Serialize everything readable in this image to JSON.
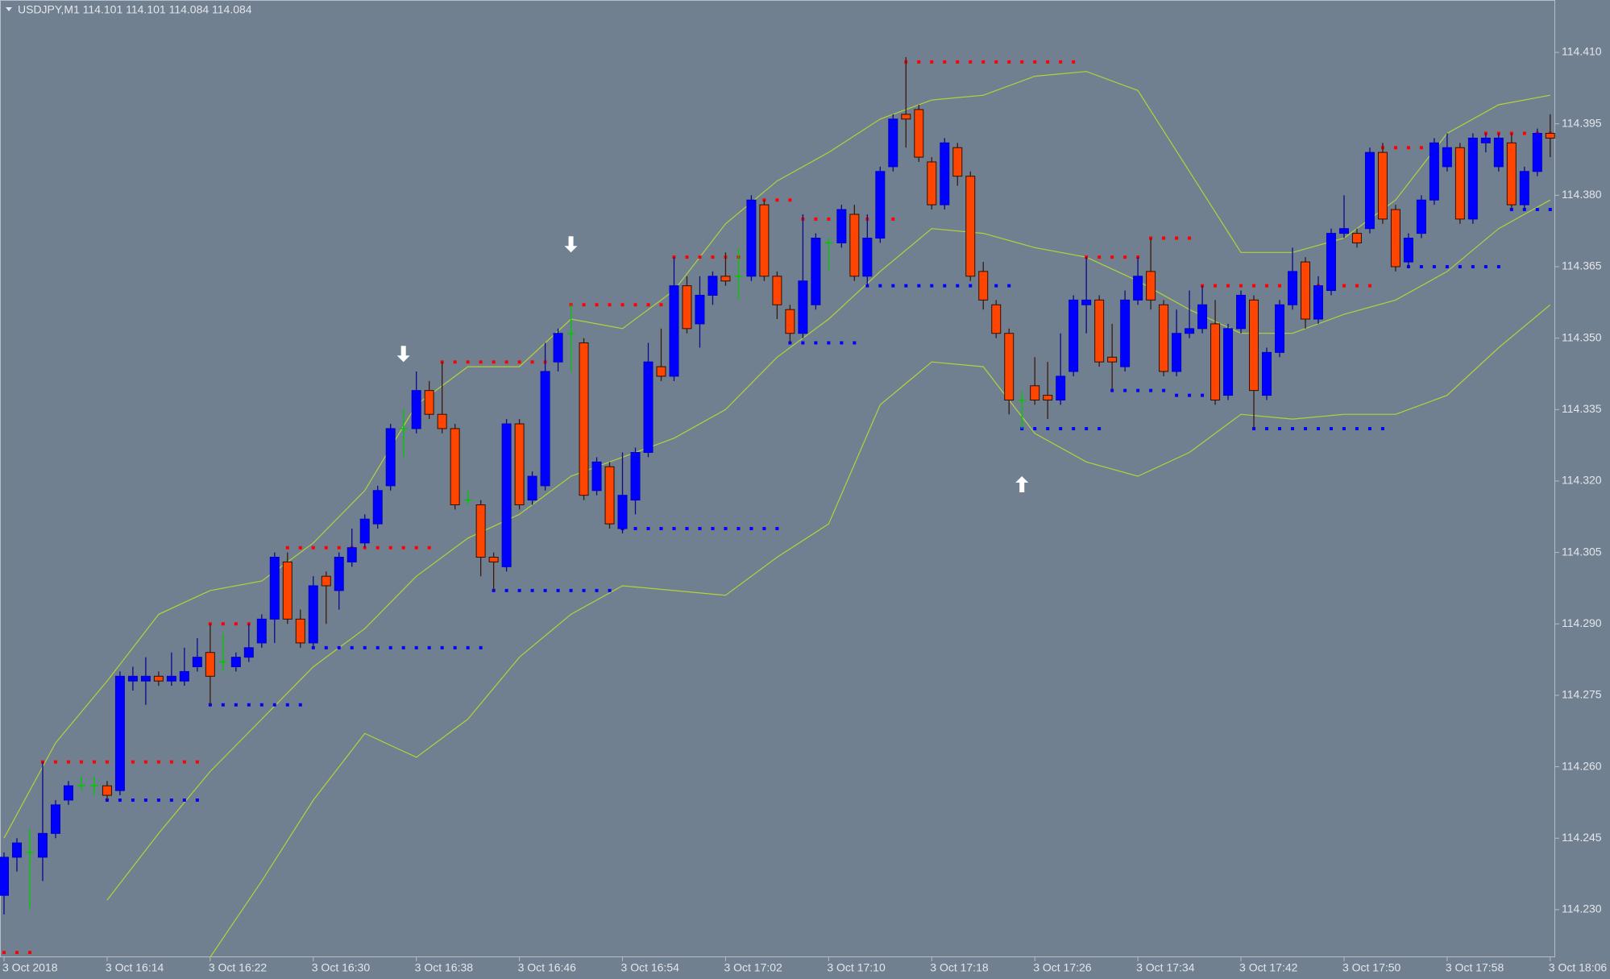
{
  "chart_data": {
    "type": "candlestick",
    "title": "USDJPY,M1  114.101 114.101 114.084 114.084",
    "categories": [
      "3 Oct 2018",
      null,
      null,
      null,
      null,
      null,
      null,
      null,
      "3 Oct 16:14",
      null,
      null,
      null,
      null,
      null,
      null,
      null,
      "3 Oct 16:22",
      null,
      null,
      null,
      null,
      null,
      null,
      null,
      "3 Oct 16:30",
      null,
      null,
      null,
      null,
      null,
      null,
      null,
      "3 Oct 16:38",
      null,
      null,
      null,
      null,
      null,
      null,
      null,
      "3 Oct 16:46",
      null,
      null,
      null,
      null,
      null,
      null,
      null,
      "3 Oct 16:54",
      null,
      null,
      null,
      null,
      null,
      null,
      null,
      "3 Oct 17:02",
      null,
      null,
      null,
      null,
      null,
      null,
      null,
      "3 Oct 17:10",
      null,
      null,
      null,
      null,
      null,
      null,
      null,
      "3 Oct 17:18",
      null,
      null,
      null,
      null,
      null,
      null,
      null,
      "3 Oct 17:26",
      null,
      null,
      null,
      null,
      null,
      null,
      null,
      "3 Oct 17:34",
      null,
      null,
      null,
      null,
      null,
      null,
      null,
      "3 Oct 17:42",
      null,
      null,
      null,
      null,
      null,
      null,
      null,
      "3 Oct 17:50",
      null,
      null,
      null,
      null,
      null,
      null,
      null,
      "3 Oct 17:58",
      null,
      null,
      null,
      null,
      null,
      null,
      null,
      "3 Oct 18:06"
    ],
    "candles": {
      "open": [
        114.233,
        114.241,
        114.242,
        114.241,
        114.246,
        114.253,
        114.256,
        114.256,
        114.256,
        114.255,
        114.278,
        114.278,
        114.279,
        114.278,
        114.278,
        114.281,
        114.284,
        114.282,
        114.281,
        114.283,
        114.286,
        114.291,
        114.303,
        114.291,
        114.286,
        114.3,
        114.297,
        114.303,
        114.307,
        114.311,
        114.319,
        114.331,
        114.331,
        114.339,
        114.334,
        114.331,
        114.316,
        114.315,
        114.304,
        114.302,
        114.332,
        114.316,
        114.319,
        114.345,
        114.351,
        114.349,
        114.318,
        114.323,
        114.31,
        114.316,
        114.326,
        114.344,
        114.342,
        114.361,
        114.353,
        114.359,
        114.363,
        114.363,
        114.363,
        114.378,
        114.363,
        114.356,
        114.351,
        114.357,
        114.37,
        114.37,
        114.376,
        114.363,
        114.371,
        114.386,
        114.397,
        114.398,
        114.387,
        114.378,
        114.39,
        114.384,
        114.364,
        114.357,
        114.351,
        114.337,
        114.34,
        114.338,
        114.337,
        114.343,
        114.357,
        114.358,
        114.346,
        114.344,
        114.358,
        114.364,
        114.357,
        114.343,
        114.351,
        114.352,
        114.353,
        114.338,
        114.352,
        114.358,
        114.338,
        114.347,
        114.357,
        114.366,
        114.354,
        114.36,
        114.372,
        114.372,
        114.373,
        114.389,
        114.377,
        114.366,
        114.372,
        114.379,
        114.386,
        114.39,
        114.375,
        114.391,
        114.386,
        114.391,
        114.378,
        114.385,
        114.393
      ],
      "high": [
        114.242,
        114.245,
        114.247,
        114.261,
        114.253,
        114.257,
        114.258,
        114.258,
        114.257,
        114.28,
        114.281,
        114.283,
        114.28,
        114.284,
        114.285,
        114.287,
        114.29,
        114.288,
        114.284,
        114.29,
        114.292,
        114.305,
        114.305,
        114.293,
        114.3,
        114.301,
        114.305,
        114.31,
        114.313,
        114.319,
        114.332,
        114.335,
        114.343,
        114.341,
        114.345,
        114.332,
        114.318,
        114.316,
        114.305,
        114.333,
        114.333,
        114.322,
        114.349,
        114.352,
        114.357,
        114.35,
        114.325,
        114.324,
        114.326,
        114.327,
        114.349,
        114.352,
        114.367,
        114.363,
        114.363,
        114.364,
        114.368,
        114.369,
        114.38,
        114.379,
        114.364,
        114.357,
        114.376,
        114.372,
        114.371,
        114.378,
        114.378,
        114.376,
        114.386,
        114.397,
        114.409,
        114.399,
        114.388,
        114.392,
        114.391,
        114.385,
        114.366,
        114.358,
        114.352,
        114.339,
        114.346,
        114.345,
        114.351,
        114.359,
        114.367,
        114.359,
        114.353,
        114.36,
        114.367,
        114.371,
        114.358,
        114.356,
        114.36,
        114.361,
        114.358,
        114.353,
        114.36,
        114.359,
        114.348,
        114.358,
        114.369,
        114.367,
        114.363,
        114.373,
        114.38,
        114.373,
        114.39,
        114.391,
        114.378,
        114.372,
        114.38,
        114.392,
        114.393,
        114.391,
        114.393,
        114.393,
        114.393,
        114.393,
        114.386,
        114.394,
        114.397
      ],
      "low": [
        114.229,
        114.238,
        114.23,
        114.236,
        114.245,
        114.252,
        114.255,
        114.254,
        114.253,
        114.254,
        114.276,
        114.273,
        114.277,
        114.277,
        114.277,
        114.28,
        114.273,
        114.28,
        114.28,
        114.282,
        114.285,
        114.286,
        114.29,
        114.285,
        114.285,
        114.29,
        114.293,
        114.302,
        114.306,
        114.31,
        114.318,
        114.325,
        114.33,
        114.333,
        114.33,
        114.314,
        114.315,
        114.3,
        114.297,
        114.301,
        114.314,
        114.315,
        114.318,
        114.343,
        114.343,
        114.316,
        114.317,
        114.31,
        114.309,
        114.313,
        114.325,
        114.341,
        114.341,
        114.351,
        114.348,
        114.357,
        114.361,
        114.358,
        114.362,
        114.362,
        114.354,
        114.349,
        114.35,
        114.356,
        114.364,
        114.369,
        114.362,
        114.361,
        114.37,
        114.385,
        114.39,
        114.387,
        114.377,
        114.377,
        114.382,
        114.362,
        114.356,
        114.35,
        114.334,
        114.331,
        114.336,
        114.333,
        114.336,
        114.342,
        114.351,
        114.344,
        114.339,
        114.343,
        114.357,
        114.356,
        114.342,
        114.342,
        114.35,
        114.351,
        114.336,
        114.337,
        114.351,
        114.331,
        114.337,
        114.346,
        114.356,
        114.352,
        114.353,
        114.359,
        114.371,
        114.369,
        114.372,
        114.374,
        114.364,
        114.365,
        114.371,
        114.378,
        114.385,
        114.374,
        114.374,
        114.389,
        114.385,
        114.377,
        114.377,
        114.384,
        114.388
      ],
      "close": [
        114.241,
        114.244,
        114.242,
        114.246,
        114.252,
        114.256,
        114.256,
        114.256,
        114.254,
        114.279,
        114.279,
        114.279,
        114.278,
        114.279,
        114.28,
        114.283,
        114.279,
        114.282,
        114.283,
        114.285,
        114.291,
        114.304,
        114.291,
        114.286,
        114.298,
        114.298,
        114.304,
        114.306,
        114.312,
        114.318,
        114.331,
        114.331,
        114.339,
        114.334,
        114.331,
        114.315,
        114.316,
        114.304,
        114.303,
        114.332,
        114.315,
        114.321,
        114.343,
        114.351,
        114.351,
        114.317,
        114.324,
        114.311,
        114.317,
        114.326,
        114.345,
        114.342,
        114.361,
        114.352,
        114.359,
        114.363,
        114.362,
        114.363,
        114.379,
        114.363,
        114.357,
        114.351,
        114.362,
        114.371,
        114.37,
        114.377,
        114.363,
        114.371,
        114.385,
        114.396,
        114.396,
        114.388,
        114.378,
        114.391,
        114.384,
        114.363,
        114.358,
        114.351,
        114.337,
        114.337,
        114.337,
        114.337,
        114.342,
        114.358,
        114.358,
        114.345,
        114.345,
        114.358,
        114.363,
        114.358,
        114.343,
        114.351,
        114.352,
        114.357,
        114.337,
        114.352,
        114.359,
        114.339,
        114.347,
        114.357,
        114.364,
        114.354,
        114.361,
        114.372,
        114.373,
        114.37,
        114.389,
        114.375,
        114.365,
        114.371,
        114.379,
        114.391,
        114.39,
        114.375,
        114.392,
        114.392,
        114.392,
        114.378,
        114.385,
        114.393,
        114.392
      ]
    },
    "up_color": "#0000ff",
    "down_color": "#ff4500",
    "doji_color": "#00c800",
    "band_color": "#b4d23a",
    "band_x": [
      0,
      4,
      8,
      12,
      16,
      20,
      24,
      28,
      32,
      36,
      40,
      44,
      48,
      52,
      56,
      60,
      64,
      68,
      72,
      76,
      80,
      84,
      88,
      92,
      96,
      100,
      104,
      108,
      112,
      116,
      120
    ],
    "bands": {
      "upper": [
        114.245,
        114.265,
        114.278,
        114.292,
        114.297,
        114.299,
        114.307,
        114.318,
        114.336,
        114.344,
        114.344,
        114.354,
        114.352,
        114.36,
        114.374,
        114.383,
        114.389,
        114.396,
        114.4,
        114.401,
        114.405,
        114.406,
        114.402,
        114.385,
        114.368,
        114.368,
        114.371,
        114.379,
        114.393,
        114.399,
        114.401
      ],
      "middle": [
        null,
        null,
        114.232,
        114.246,
        114.259,
        114.27,
        114.281,
        114.289,
        114.3,
        114.308,
        114.313,
        114.321,
        114.325,
        114.329,
        114.335,
        114.346,
        114.354,
        114.364,
        114.373,
        114.372,
        114.369,
        114.367,
        114.362,
        114.356,
        114.351,
        114.351,
        114.355,
        114.358,
        114.364,
        114.373,
        114.379
      ],
      "lower": [
        null,
        null,
        null,
        null,
        114.22,
        114.236,
        114.253,
        114.267,
        114.262,
        114.27,
        114.283,
        114.292,
        114.298,
        114.297,
        114.296,
        114.304,
        114.311,
        114.336,
        114.345,
        114.344,
        114.33,
        114.324,
        114.321,
        114.326,
        114.334,
        114.333,
        114.334,
        114.334,
        114.338,
        114.348,
        114.357
      ]
    },
    "resistance_color": "#ff0000",
    "support_color": "#0000ff",
    "resistance": [
      {
        "price": 114.221,
        "from": 0,
        "to": 2
      },
      {
        "price": 114.261,
        "from": 3,
        "to": 15
      },
      {
        "price": 114.29,
        "from": 16,
        "to": 19
      },
      {
        "price": 114.306,
        "from": 22,
        "to": 33
      },
      {
        "price": 114.345,
        "from": 34,
        "to": 42
      },
      {
        "price": 114.357,
        "from": 44,
        "to": 51
      },
      {
        "price": 114.367,
        "from": 52,
        "to": 57
      },
      {
        "price": 114.379,
        "from": 59,
        "to": 61
      },
      {
        "price": 114.375,
        "from": 62,
        "to": 69
      },
      {
        "price": 114.408,
        "from": 70,
        "to": 83
      },
      {
        "price": 114.367,
        "from": 84,
        "to": 88
      },
      {
        "price": 114.371,
        "from": 89,
        "to": 92
      },
      {
        "price": 114.361,
        "from": 93,
        "to": 99
      },
      {
        "price": 114.361,
        "from": 102,
        "to": 106
      },
      {
        "price": 114.39,
        "from": 107,
        "to": 111
      },
      {
        "price": 114.393,
        "from": 115,
        "to": 120
      }
    ],
    "support": [
      {
        "price": 114.253,
        "from": 8,
        "to": 15
      },
      {
        "price": 114.273,
        "from": 16,
        "to": 23
      },
      {
        "price": 114.285,
        "from": 24,
        "to": 37
      },
      {
        "price": 114.297,
        "from": 38,
        "to": 47
      },
      {
        "price": 114.31,
        "from": 48,
        "to": 60
      },
      {
        "price": 114.349,
        "from": 61,
        "to": 66
      },
      {
        "price": 114.361,
        "from": 67,
        "to": 78
      },
      {
        "price": 114.331,
        "from": 79,
        "to": 85
      },
      {
        "price": 114.339,
        "from": 86,
        "to": 90
      },
      {
        "price": 114.338,
        "from": 91,
        "to": 94
      },
      {
        "price": 114.331,
        "from": 97,
        "to": 107
      },
      {
        "price": 114.365,
        "from": 109,
        "to": 116
      },
      {
        "price": 114.377,
        "from": 117,
        "to": 120
      }
    ],
    "arrows": [
      {
        "index": 31,
        "price": 114.345,
        "dir": "down"
      },
      {
        "index": 44,
        "price": 114.368,
        "dir": "down"
      },
      {
        "index": 79,
        "price": 114.321,
        "dir": "up"
      }
    ],
    "arrow_color": "#ffffff",
    "ylim": [
      114.22,
      114.421
    ],
    "yticks": [
      {
        "value": 114.23,
        "label": "114.230"
      },
      114.245,
      {
        "value": 114.26,
        "label": "114.260"
      },
      114.275,
      {
        "value": 114.29,
        "label": "114.290"
      },
      114.305,
      {
        "value": 114.32,
        "label": "114.320"
      },
      114.335,
      {
        "value": 114.35,
        "label": "114.350"
      },
      114.365,
      {
        "value": 114.38,
        "label": "114.380"
      },
      114.395,
      {
        "value": 114.41,
        "label": "114.410"
      }
    ]
  }
}
